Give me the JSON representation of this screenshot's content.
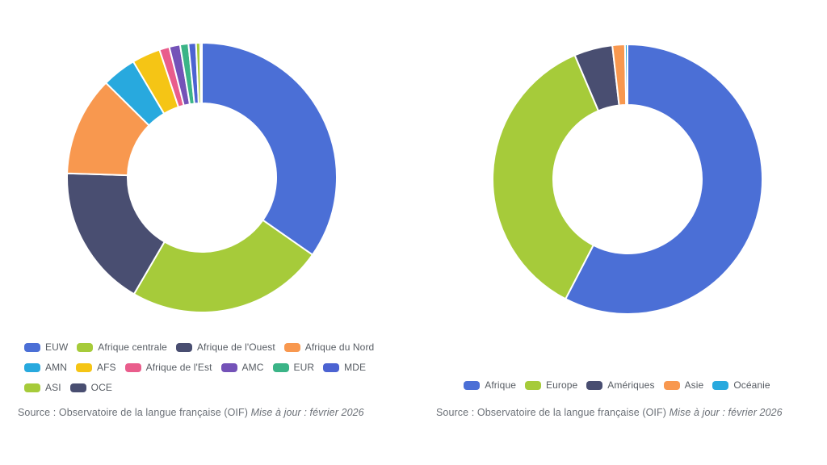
{
  "source_note": {
    "regular": "Source : Observatoire de la langue française (OIF) ",
    "italic": "Mise à jour : février 2026"
  },
  "chart_data": [
    {
      "type": "pie",
      "subtype": "donut",
      "title": "",
      "legend_position": "bottom",
      "categories": [
        "EUW",
        "Afrique centrale",
        "Afrique de l'Ouest",
        "Afrique du Nord",
        "AMN",
        "AFS",
        "Afrique de l'Est",
        "AMC",
        "EUR",
        "MDE",
        "ASI",
        "OCE"
      ],
      "values": [
        34.7,
        23.7,
        17.1,
        11.9,
        4.1,
        3.4,
        1.2,
        1.3,
        1.0,
        0.9,
        0.5,
        0.2
      ],
      "unit": "percent-of-ring (estimated from arc angles)",
      "colors": [
        "#4b6fd6",
        "#a6cb3a",
        "#494e71",
        "#f8984f",
        "#28a9de",
        "#f5c515",
        "#e95d8c",
        "#7452b8",
        "#3bb487",
        "#4c63d2",
        "#a6cb3a",
        "#494e71"
      ],
      "start_angle_deg": 0,
      "direction": "clockwise",
      "source": "Source : Observatoire de la langue française (OIF) Mise à jour : février 2026"
    },
    {
      "type": "pie",
      "subtype": "donut",
      "title": "",
      "legend_position": "bottom",
      "categories": [
        "Afrique",
        "Europe",
        "Amériques",
        "Asie",
        "Océanie"
      ],
      "values": [
        57.6,
        36.0,
        4.6,
        1.5,
        0.3
      ],
      "unit": "percent-of-ring (estimated from arc angles)",
      "colors": [
        "#4b6fd6",
        "#a6cb3a",
        "#494e71",
        "#f8984f",
        "#28a9de"
      ],
      "start_angle_deg": 0,
      "direction": "clockwise",
      "source": "Source : Observatoire de la langue française (OIF) Mise à jour : février 2026"
    }
  ]
}
